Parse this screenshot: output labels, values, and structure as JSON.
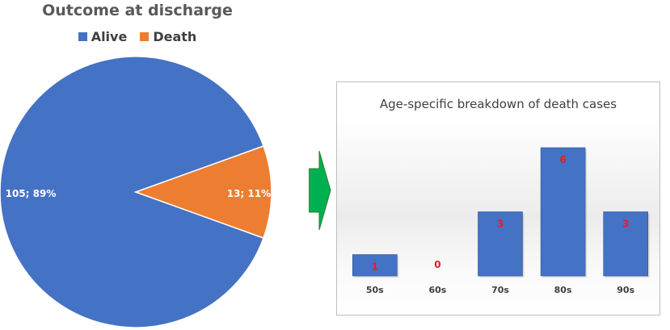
{
  "chart_data": [
    {
      "type": "pie",
      "title": "Outcome at discharge",
      "legend_position": "top",
      "series": [
        {
          "name": "Alive",
          "value": 105,
          "label": "105; 89%",
          "color": "#4472c4"
        },
        {
          "name": "Death",
          "value": 13,
          "label": "13; 11%",
          "color": "#ed7d31"
        }
      ]
    },
    {
      "type": "bar",
      "title": "Age-specific breakdown of death cases",
      "categories": [
        "50s",
        "60s",
        "70s",
        "80s",
        "90s"
      ],
      "values": [
        1,
        0,
        3,
        6,
        3
      ],
      "xlabel": "",
      "ylabel": "",
      "ylim": [
        0,
        7
      ],
      "grid": false,
      "bar_color": "#4472c4",
      "value_label_color": "#e02020"
    }
  ],
  "connector": {
    "icon": "right-arrow-icon",
    "color": "#00b050"
  }
}
